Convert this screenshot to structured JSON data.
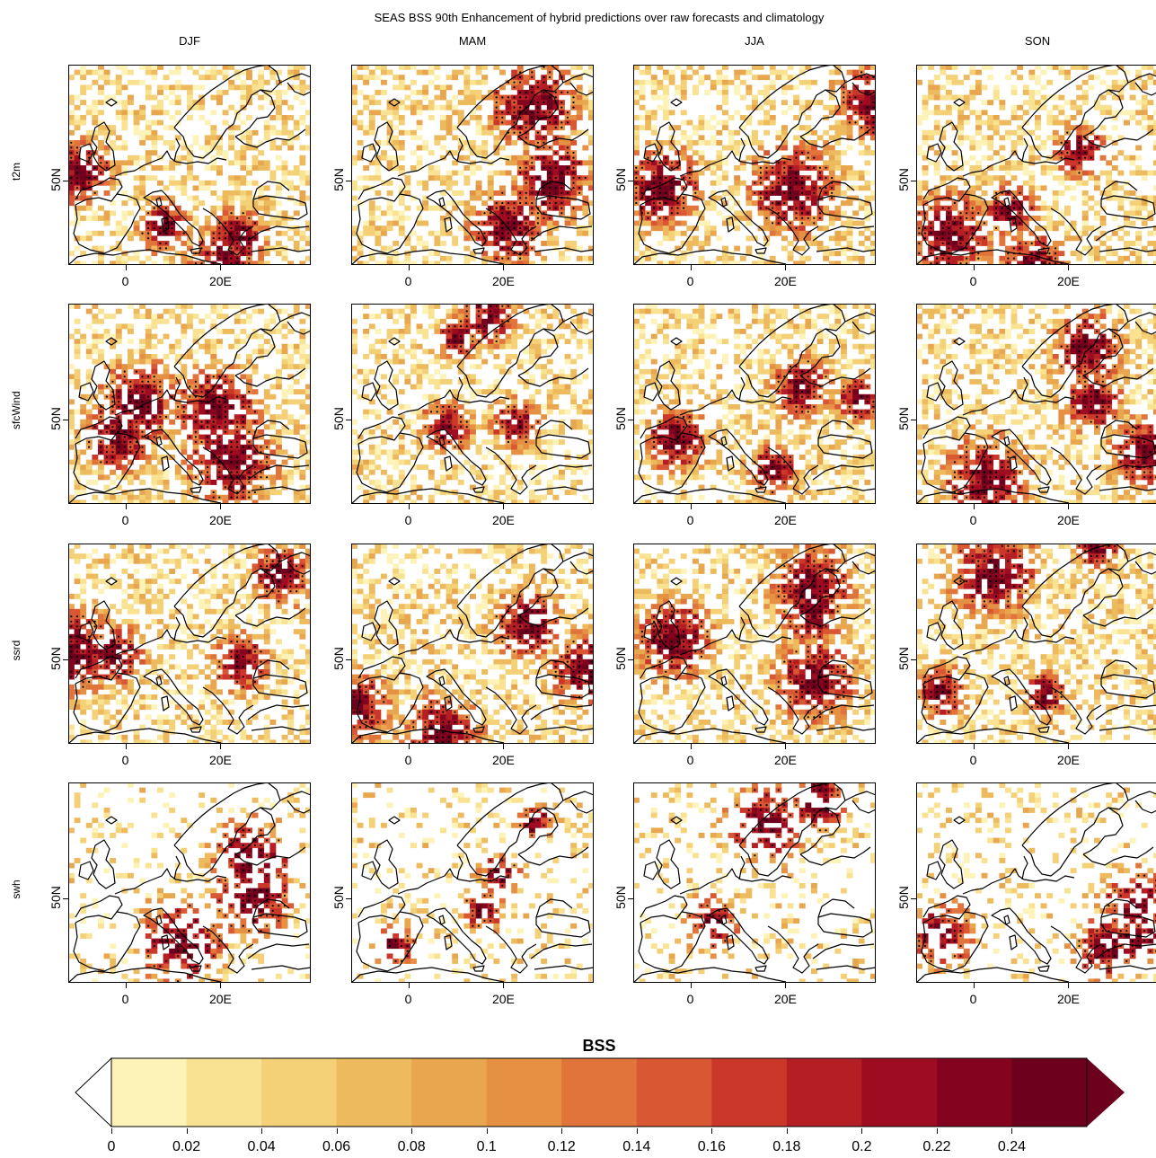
{
  "title": "SEAS BSS 90th Enhancement of hybrid predictions over raw forecasts and climatology",
  "columns": [
    "DJF",
    "MAM",
    "JJA",
    "SON"
  ],
  "rows": [
    "t2m",
    "sfcWind",
    "ssrd",
    "swh"
  ],
  "axes": {
    "x_ticks": [
      "0",
      "20E"
    ],
    "y_ticks": [
      "50N"
    ]
  },
  "map_extent": {
    "lon": [
      -12,
      39
    ],
    "lat": [
      34,
      72
    ]
  },
  "colorbar": {
    "title": "BSS",
    "labels": [
      "0",
      "0.02",
      "0.04",
      "0.06",
      "0.08",
      "0.1",
      "0.12",
      "0.14",
      "0.16",
      "0.18",
      "0.2",
      "0.22",
      "0.24"
    ],
    "colors": [
      "#fdf3b8",
      "#f9e292",
      "#f4d177",
      "#edbb5e",
      "#e8a64f",
      "#e59042",
      "#e0743b",
      "#d95732",
      "#cb3729",
      "#b51f24",
      "#9e0c22",
      "#84031f",
      "#6d001c"
    ],
    "under_color": "#ffffff",
    "over_color": "#6d001c"
  },
  "colors": {
    "coastline": "#000000",
    "significance_dot": "#000000"
  }
}
